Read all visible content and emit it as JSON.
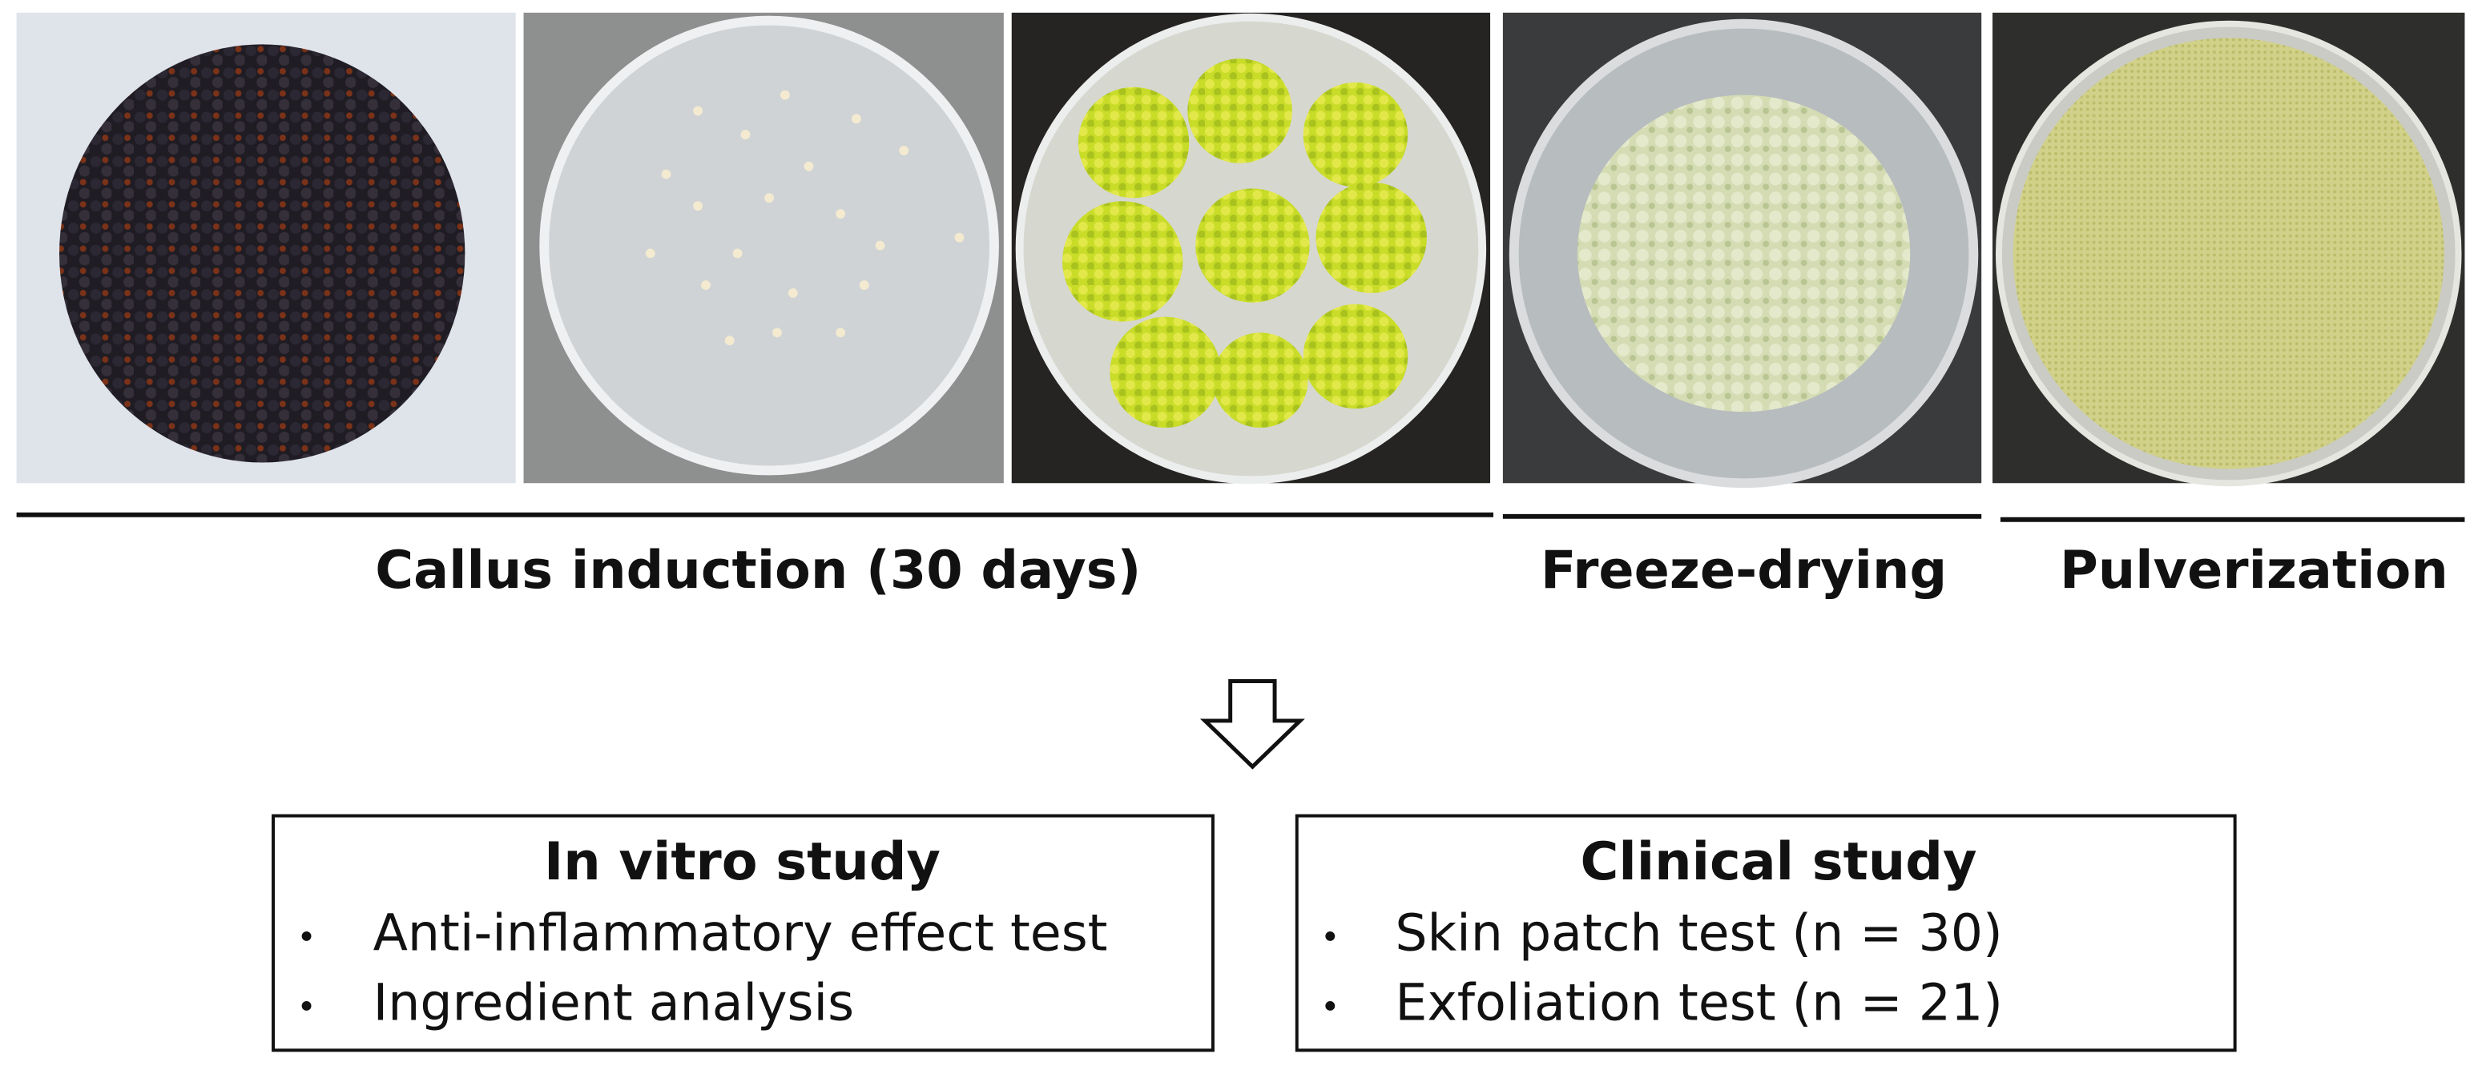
{
  "stages": [
    {
      "label": "Callus induction (30 days)"
    },
    {
      "label": "Freeze-drying"
    },
    {
      "label": "Pulverization"
    }
  ],
  "studies": [
    {
      "title": "In vitro study",
      "items": [
        "Anti-inflammatory effect test",
        "Ingredient analysis"
      ]
    },
    {
      "title": "Clinical study",
      "items": [
        "Skin patch test (n = 30)",
        "Exfoliation test (n = 21)"
      ]
    }
  ]
}
